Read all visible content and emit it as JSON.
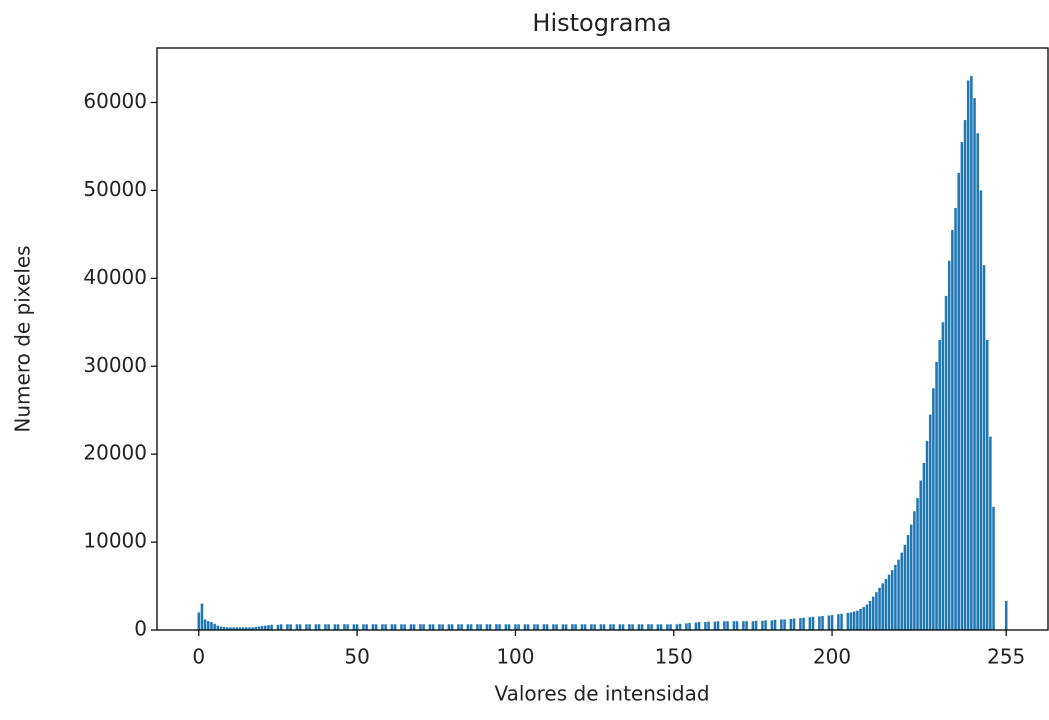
{
  "chart_data": {
    "type": "bar",
    "title": "Histograma",
    "x_label": "Valores de intensidad",
    "y_label": "Numero de pixeles",
    "color": "#1f77b4",
    "x": [
      0,
      1,
      2,
      3,
      4,
      5,
      6,
      7,
      8,
      9,
      10,
      11,
      12,
      13,
      14,
      15,
      16,
      17,
      18,
      19,
      20,
      21,
      22,
      23,
      24,
      25,
      26,
      27,
      28,
      29,
      30,
      31,
      32,
      33,
      34,
      35,
      36,
      37,
      38,
      39,
      40,
      41,
      42,
      43,
      44,
      45,
      46,
      47,
      48,
      49,
      50,
      51,
      52,
      53,
      54,
      55,
      56,
      57,
      58,
      59,
      60,
      61,
      62,
      63,
      64,
      65,
      66,
      67,
      68,
      69,
      70,
      71,
      72,
      73,
      74,
      75,
      76,
      77,
      78,
      79,
      80,
      81,
      82,
      83,
      84,
      85,
      86,
      87,
      88,
      89,
      90,
      91,
      92,
      93,
      94,
      95,
      96,
      97,
      98,
      99,
      100,
      101,
      102,
      103,
      104,
      105,
      106,
      107,
      108,
      109,
      110,
      111,
      112,
      113,
      114,
      115,
      116,
      117,
      118,
      119,
      120,
      121,
      122,
      123,
      124,
      125,
      126,
      127,
      128,
      129,
      130,
      131,
      132,
      133,
      134,
      135,
      136,
      137,
      138,
      139,
      140,
      141,
      142,
      143,
      144,
      145,
      146,
      147,
      148,
      149,
      150,
      151,
      152,
      153,
      154,
      155,
      156,
      157,
      158,
      159,
      160,
      161,
      162,
      163,
      164,
      165,
      166,
      167,
      168,
      169,
      170,
      171,
      172,
      173,
      174,
      175,
      176,
      177,
      178,
      179,
      180,
      181,
      182,
      183,
      184,
      185,
      186,
      187,
      188,
      189,
      190,
      191,
      192,
      193,
      194,
      195,
      196,
      197,
      198,
      199,
      200,
      201,
      202,
      203,
      204,
      205,
      206,
      207,
      208,
      209,
      210,
      211,
      212,
      213,
      214,
      215,
      216,
      217,
      218,
      219,
      220,
      221,
      222,
      223,
      224,
      225,
      226,
      227,
      228,
      229,
      230,
      231,
      232,
      233,
      234,
      235,
      236,
      237,
      238,
      239,
      240,
      241,
      242,
      243,
      244,
      245,
      246,
      247,
      248,
      249,
      250,
      251,
      252,
      253,
      254,
      255
    ],
    "values": [
      2000,
      3000,
      1200,
      1000,
      900,
      700,
      500,
      400,
      350,
      300,
      300,
      300,
      300,
      300,
      300,
      300,
      300,
      300,
      350,
      400,
      450,
      500,
      550,
      600,
      0,
      600,
      650,
      0,
      650,
      650,
      0,
      650,
      650,
      0,
      650,
      650,
      0,
      650,
      650,
      0,
      650,
      650,
      0,
      650,
      650,
      0,
      650,
      650,
      0,
      650,
      650,
      0,
      650,
      650,
      0,
      650,
      650,
      0,
      650,
      650,
      0,
      650,
      650,
      0,
      650,
      650,
      0,
      650,
      650,
      0,
      650,
      650,
      0,
      650,
      650,
      0,
      650,
      650,
      0,
      650,
      650,
      0,
      650,
      650,
      0,
      650,
      650,
      0,
      650,
      650,
      0,
      650,
      650,
      0,
      650,
      650,
      0,
      650,
      650,
      0,
      650,
      650,
      0,
      650,
      650,
      0,
      650,
      650,
      0,
      650,
      650,
      0,
      650,
      650,
      0,
      650,
      650,
      0,
      650,
      650,
      0,
      650,
      650,
      0,
      650,
      650,
      0,
      650,
      650,
      0,
      650,
      650,
      0,
      650,
      650,
      0,
      650,
      650,
      0,
      650,
      650,
      0,
      650,
      650,
      0,
      650,
      650,
      0,
      650,
      650,
      0,
      650,
      700,
      0,
      750,
      800,
      0,
      850,
      900,
      0,
      900,
      950,
      0,
      950,
      1000,
      0,
      1000,
      1000,
      0,
      1000,
      1000,
      0,
      1000,
      1000,
      0,
      1000,
      1050,
      0,
      1050,
      1100,
      0,
      1100,
      1150,
      0,
      1200,
      1200,
      0,
      1250,
      1300,
      0,
      1350,
      1400,
      0,
      1450,
      1500,
      0,
      1550,
      1600,
      0,
      1650,
      1700,
      0,
      1800,
      1850,
      0,
      1950,
      2000,
      2100,
      2200,
      2400,
      2600,
      2900,
      3300,
      3800,
      4300,
      4800,
      5300,
      5800,
      6300,
      6800,
      7400,
      8000,
      8800,
      9700,
      10800,
      12000,
      13500,
      15000,
      17000,
      19000,
      21500,
      24500,
      27500,
      30500,
      33000,
      35000,
      38000,
      42000,
      45500,
      48000,
      52000,
      55500,
      58000,
      62500,
      63000,
      60500,
      56500,
      50000,
      41500,
      33000,
      22000,
      14000,
      0,
      0,
      0,
      3300
    ],
    "bar_width": 0.8,
    "xlim": [
      -13.2,
      268.2
    ],
    "xticks": [
      0,
      50,
      100,
      150,
      200,
      255
    ],
    "ylim": [
      0,
      66200
    ],
    "yticks": [
      0,
      10000,
      20000,
      30000,
      40000,
      50000,
      60000
    ]
  }
}
